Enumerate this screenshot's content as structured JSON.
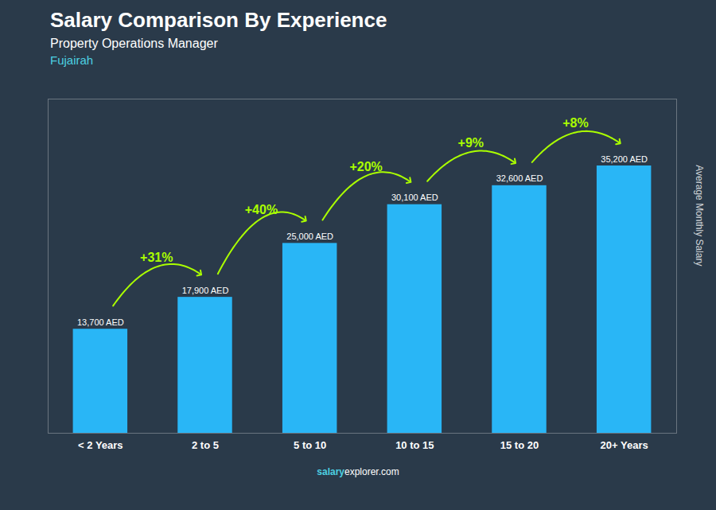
{
  "chart_data": {
    "type": "bar",
    "title": "Salary Comparison By Experience",
    "subtitle": "Property Operations Manager",
    "annotations": [
      {
        "text": "Fujairah",
        "color": "#4dd0e1"
      }
    ],
    "footer": [
      {
        "text": "salary",
        "color": "#4dd0e1"
      },
      {
        "text": "explorer.com"
      }
    ],
    "ylabel": "Average Monthly Salary",
    "categories": [
      "< 2 Years",
      "2 to 5",
      "5 to 10",
      "10 to 15",
      "15 to 20",
      "20+ Years"
    ],
    "values": [
      13700,
      17900,
      25000,
      30100,
      32600,
      35200
    ],
    "value_labels": [
      "13,700 AED",
      "17,900 AED",
      "25,000 AED",
      "30,100 AED",
      "32,600 AED",
      "35,200 AED"
    ],
    "data_labels": true,
    "color": "#29b6f6",
    "changes": {
      "labels": [
        "+31%",
        "+40%",
        "+20%",
        "+9%",
        "+8%"
      ],
      "color": "#aaff00"
    },
    "ylim": [
      0,
      44000
    ],
    "tick_labels": "x",
    "grid": false
  }
}
